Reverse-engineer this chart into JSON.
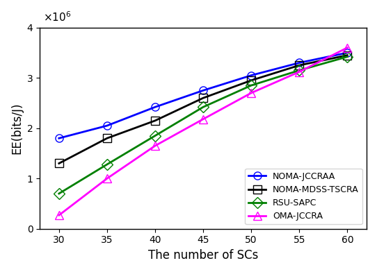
{
  "x": [
    30,
    35,
    40,
    45,
    50,
    55,
    60
  ],
  "series": [
    {
      "label": "NOMA-JCCRAA",
      "color": "blue",
      "marker": "o",
      "markerfacecolor": "none",
      "markersize": 8,
      "linewidth": 2,
      "y": [
        1800000,
        2050000,
        2420000,
        2750000,
        3050000,
        3300000,
        3500000
      ]
    },
    {
      "label": "NOMA-MDSS-TSCRA",
      "color": "black",
      "marker": "s",
      "markerfacecolor": "none",
      "markersize": 8,
      "linewidth": 2,
      "y": [
        1300000,
        1800000,
        2150000,
        2600000,
        2950000,
        3250000,
        3450000
      ]
    },
    {
      "label": "RSU-SAPC",
      "color": "green",
      "marker": "D",
      "markerfacecolor": "none",
      "markersize": 8,
      "linewidth": 2,
      "y": [
        700000,
        1280000,
        1850000,
        2420000,
        2850000,
        3150000,
        3420000
      ]
    },
    {
      "label": "OMA-JCCRA",
      "color": "magenta",
      "marker": "^",
      "markerfacecolor": "none",
      "markersize": 8,
      "linewidth": 2,
      "y": [
        270000,
        1000000,
        1650000,
        2180000,
        2700000,
        3120000,
        3600000
      ]
    }
  ],
  "xlabel": "The number of SCs",
  "ylabel": "EE(bits/J)",
  "xlim": [
    28,
    62
  ],
  "ylim": [
    0,
    4000000
  ],
  "yticks": [
    0,
    1000000,
    2000000,
    3000000,
    4000000
  ],
  "xticks": [
    30,
    35,
    40,
    45,
    50,
    55,
    60
  ],
  "legend_loc": "lower right"
}
